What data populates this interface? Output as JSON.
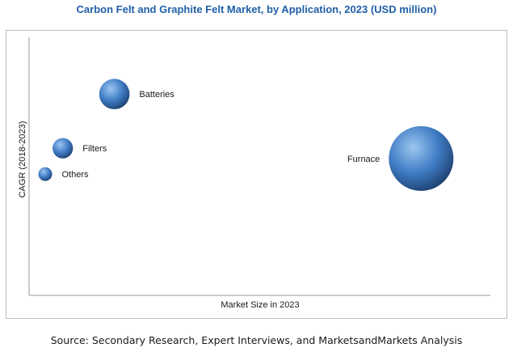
{
  "colors": {
    "title": "#1f5fa8",
    "bubble_light": "#9cc6f0",
    "bubble_mid": "#3f7cc4",
    "bubble_dark": "#1d3f6e"
  },
  "source_text": "Source: Secondary Research, Expert Interviews, and MarketsandMarkets Analysis",
  "chart_data": {
    "type": "scatter",
    "subtype": "bubble",
    "title": "Carbon Felt and Graphite Felt Market, by Application, 2023 (USD million)",
    "xlabel": "Market Size in 2023",
    "ylabel": "CAGR (2018-2023)",
    "xlim": [
      0,
      100
    ],
    "ylim": [
      0,
      100
    ],
    "grid": false,
    "legend": "none",
    "series": [
      {
        "points": [
          {
            "label": "Batteries",
            "x": 18.5,
            "y": 78,
            "size": 2.2
          },
          {
            "label": "Filters",
            "x": 7.3,
            "y": 57,
            "size": 1
          },
          {
            "label": "Others",
            "x": 3.5,
            "y": 47,
            "size": 0.45
          },
          {
            "label": "Furnace",
            "x": 85,
            "y": 53,
            "size": 10
          }
        ]
      }
    ]
  }
}
